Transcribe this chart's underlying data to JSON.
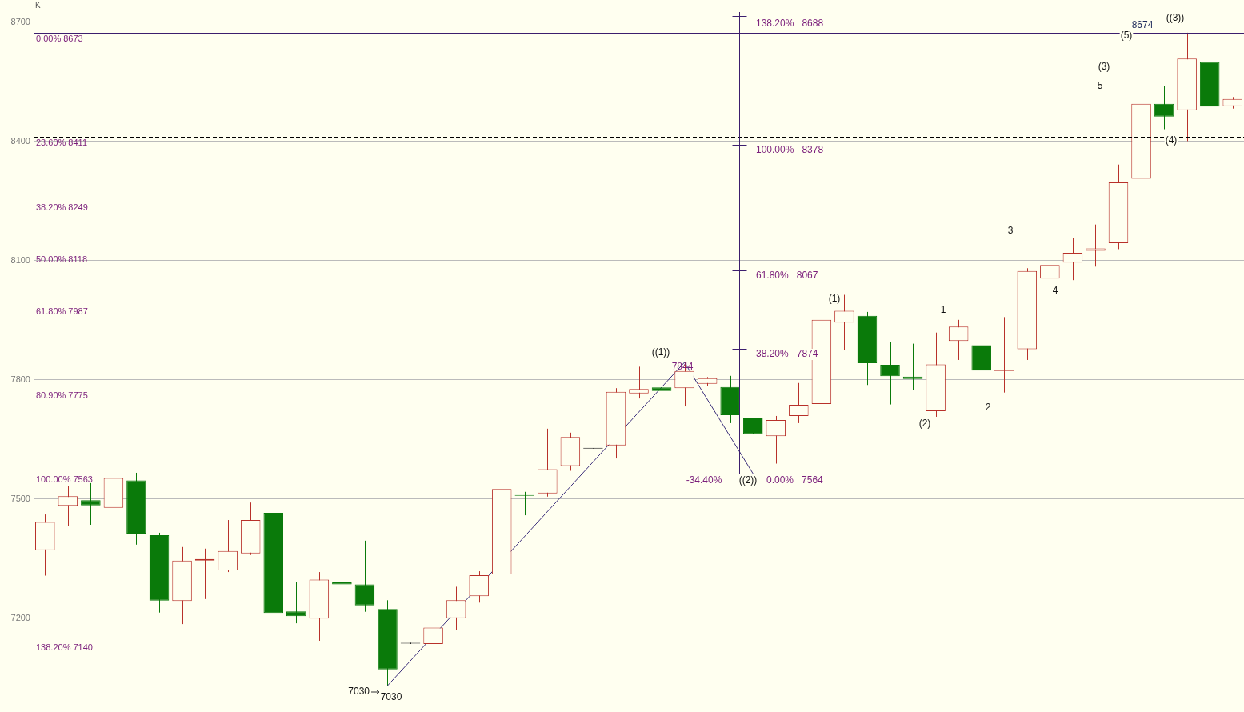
{
  "chart_data": {
    "type": "candlestick",
    "categories": [
      null,
      null,
      null,
      null,
      null,
      null,
      null,
      null,
      null,
      null,
      null,
      null,
      null,
      null,
      null,
      null,
      null,
      null,
      null,
      null,
      null,
      null,
      null,
      null,
      null,
      null,
      null,
      null,
      null,
      null,
      null,
      null,
      null,
      null,
      null,
      null,
      null,
      null,
      null,
      null,
      null,
      null,
      null,
      null,
      null,
      null,
      null,
      null,
      null,
      null,
      null,
      null,
      null
    ],
    "ohlc": [
      [
        7371,
        7461,
        7307,
        7442
      ],
      [
        7483,
        7533,
        7433,
        7507
      ],
      [
        7497,
        7540,
        7435,
        7484
      ],
      [
        7478,
        7581,
        7464,
        7553
      ],
      [
        7547,
        7566,
        7385,
        7413
      ],
      [
        7409,
        7415,
        7214,
        7244
      ],
      [
        7243,
        7379,
        7185,
        7345
      ],
      [
        7345,
        7375,
        7248,
        7349
      ],
      [
        7320,
        7447,
        7316,
        7369
      ],
      [
        7363,
        7491,
        7359,
        7447
      ],
      [
        7465,
        7489,
        7165,
        7213
      ],
      [
        7217,
        7291,
        7187,
        7205
      ],
      [
        7199,
        7316,
        7143,
        7297
      ],
      [
        7290,
        7310,
        7105,
        7285
      ],
      [
        7285,
        7395,
        7216,
        7232
      ],
      [
        7223,
        7245,
        7030,
        7071
      ],
      [
        7137,
        7138,
        7135,
        7136
      ],
      [
        7135,
        7190,
        7130,
        7176
      ],
      [
        7200,
        7279,
        7170,
        7245
      ],
      [
        7255,
        7318,
        7239,
        7308
      ],
      [
        7310,
        7529,
        7306,
        7525
      ],
      [
        7510,
        7518,
        7459,
        7508
      ],
      [
        7514,
        7677,
        7506,
        7575
      ],
      [
        7583,
        7667,
        7571,
        7656
      ],
      [
        7628,
        7628,
        7627,
        7627
      ],
      [
        7635,
        7779,
        7602,
        7770
      ],
      [
        7766,
        7833,
        7753,
        7777
      ],
      [
        7781,
        7823,
        7722,
        7772
      ],
      [
        7779,
        7844,
        7733,
        7822
      ],
      [
        7790,
        7807,
        7784,
        7804
      ],
      [
        7782,
        7810,
        7691,
        7711
      ],
      [
        7703,
        7703,
        7663,
        7663
      ],
      [
        7658,
        7709,
        7589,
        7699
      ],
      [
        7709,
        7792,
        7691,
        7737
      ],
      [
        7739,
        7955,
        7737,
        7951
      ],
      [
        7944,
        8014,
        7876,
        7974
      ],
      [
        7961,
        7971,
        7787,
        7842
      ],
      [
        7838,
        7895,
        7738,
        7809
      ],
      [
        7808,
        7891,
        7774,
        7802
      ],
      [
        7721,
        7919,
        7707,
        7839
      ],
      [
        7898,
        7951,
        7850,
        7934
      ],
      [
        7887,
        7932,
        7809,
        7823
      ],
      [
        7822,
        7958,
        7768,
        7824
      ],
      [
        7877,
        8081,
        7850,
        8074
      ],
      [
        8055,
        8181,
        8047,
        8089
      ],
      [
        8095,
        8157,
        8051,
        8120
      ],
      [
        8125,
        8191,
        8085,
        8131
      ],
      [
        8144,
        8342,
        8129,
        8297
      ],
      [
        8306,
        8545,
        8253,
        8495
      ],
      [
        8495,
        8539,
        8431,
        8463
      ],
      [
        8479,
        8674,
        8401,
        8609
      ],
      [
        8600,
        8642,
        8414,
        8488
      ],
      [
        8489,
        8512,
        8483,
        8507
      ]
    ],
    "colors": [
      "#b8312a",
      "#b8312a",
      "#0a7a0a",
      "#b8312a",
      "#0a7a0a",
      "#0a7a0a",
      "#b8312a",
      "#b8312a",
      "#b8312a",
      "#b8312a",
      "#0a7a0a",
      "#0a7a0a",
      "#b8312a",
      "#0a7a0a",
      "#0a7a0a",
      "#0a7a0a",
      "#1a1a1a",
      "#b8312a",
      "#b8312a",
      "#b8312a",
      "#b8312a",
      "#0a7a0a",
      "#b8312a",
      "#b8312a",
      "#1a1a1a",
      "#b8312a",
      "#b8312a",
      "#0a7a0a",
      "#b8312a",
      "#b8312a",
      "#0a7a0a",
      "#0a7a0a",
      "#b8312a",
      "#b8312a",
      "#b8312a",
      "#b8312a",
      "#0a7a0a",
      "#0a7a0a",
      "#0a7a0a",
      "#b8312a",
      "#b8312a",
      "#0a7a0a",
      "#b8312a",
      "#b8312a",
      "#b8312a",
      "#b8312a",
      "#b8312a",
      "#b8312a",
      "#b8312a",
      "#0a7a0a",
      "#b8312a",
      "#0a7a0a",
      "#b8312a"
    ],
    "series": [
      {
        "type": "line",
        "color": "#3a2d7a",
        "values": [
          null,
          null,
          null,
          null,
          null,
          null,
          null,
          null,
          null,
          null,
          null,
          null,
          null,
          null,
          null,
          7030,
          null,
          null,
          null,
          null,
          null,
          null,
          null,
          null,
          null,
          null,
          null,
          null,
          7844,
          null,
          null,
          7564,
          null,
          null,
          null,
          null,
          null,
          null,
          null,
          null,
          null,
          null,
          null,
          null,
          null,
          null,
          null,
          null,
          null,
          null,
          null,
          null,
          null
        ]
      }
    ],
    "ylim": [
      6985,
      8735
    ],
    "yticks": [
      7200,
      7500,
      7800,
      8100,
      8400,
      8700
    ],
    "grid": "y",
    "tick_labels": "y",
    "legend": false,
    "ref_lines": [
      {
        "axis": "y",
        "value": 8673,
        "label": "0.00% 8673",
        "color": "#3c1e6e",
        "line_style": "solid"
      },
      {
        "axis": "y",
        "value": 8411,
        "label": "23.60% 8411",
        "color": "#000000",
        "line_style": "dashed"
      },
      {
        "axis": "y",
        "value": 8249,
        "label": "38.20% 8249",
        "color": "#000000",
        "line_style": "dashed"
      },
      {
        "axis": "y",
        "value": 8118,
        "label": "50.00% 8118",
        "color": "#000000",
        "line_style": "dashed"
      },
      {
        "axis": "y",
        "value": 7987,
        "label": "61.80% 7987",
        "color": "#000000",
        "line_style": "dashed"
      },
      {
        "axis": "y",
        "value": 7775,
        "label": "80.90% 7775",
        "color": "#000000",
        "line_style": "dashed"
      },
      {
        "axis": "y",
        "value": 7563,
        "label": "100.00% 7563",
        "color": "#3c1e6e",
        "line_style": "solid"
      },
      {
        "axis": "y",
        "value": 7140,
        "label": "138.20% 7140",
        "color": "#000000",
        "line_style": "dashed"
      }
    ],
    "annotations": [
      "K",
      "7030",
      "7030",
      "((1))",
      "7844",
      "-34.40%",
      "((2))",
      "138.20%   8688",
      "100.00%   8378",
      "61.80%   8067",
      "38.20%   7874",
      "0.00%   7564",
      "(1)",
      "1",
      "(2)",
      "2",
      "3",
      "4",
      "5",
      "(3)",
      "(5)",
      "8674",
      "((3))",
      "(4)"
    ]
  }
}
